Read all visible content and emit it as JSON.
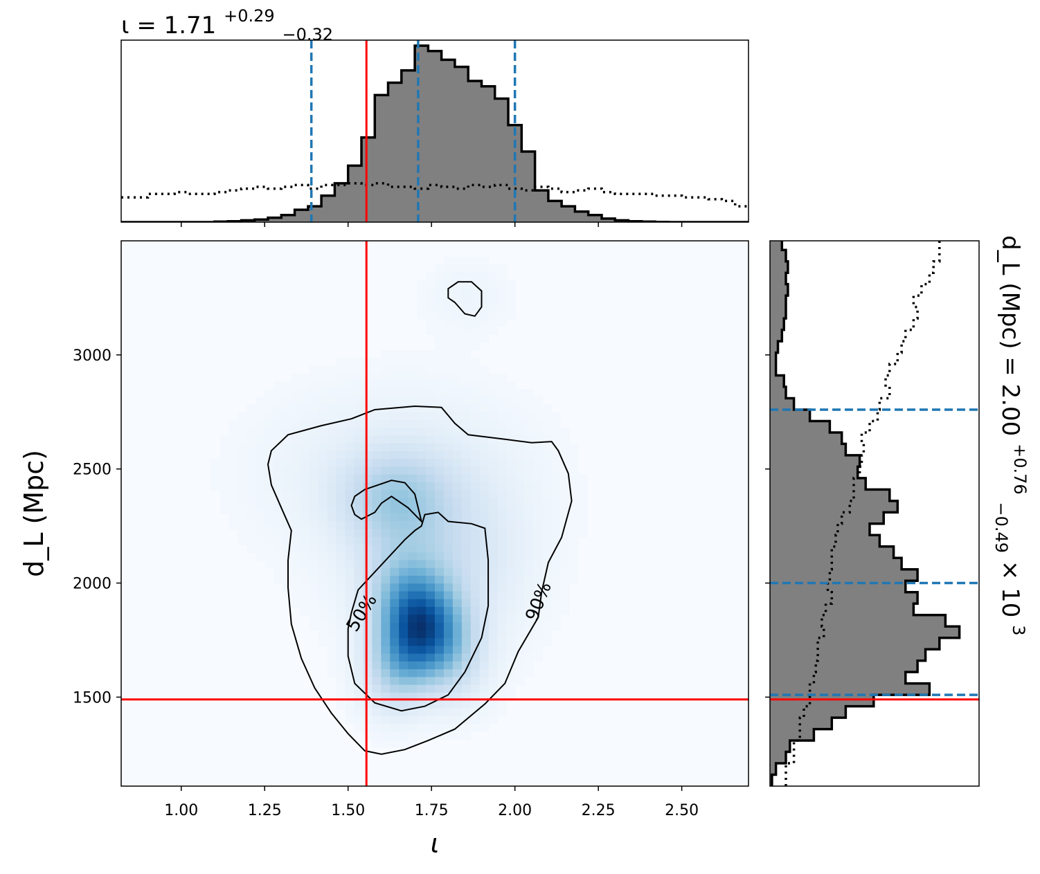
{
  "chart_data": {
    "type": "corner",
    "titles": {
      "top": {
        "text": "ι = 1.71",
        "sup": "+0.29",
        "sub": "−0.32"
      },
      "right": {
        "text": "d_L (Mpc) = 2.00",
        "sup": "+0.76",
        "sub": "−0.49",
        "suffix": " × 10",
        "exp": "3"
      }
    },
    "xlabel": "ι",
    "ylabel": "d_L (Mpc)",
    "xlim": [
      0.82,
      2.7
    ],
    "ylim": [
      1110,
      3500
    ],
    "xticks": [
      "1.00",
      "1.25",
      "1.50",
      "1.75",
      "2.00",
      "2.25",
      "2.50"
    ],
    "xtick_values": [
      1.0,
      1.25,
      1.5,
      1.75,
      2.0,
      2.25,
      2.5
    ],
    "yticks": [
      "1500",
      "2000",
      "2500",
      "3000"
    ],
    "ytick_values": [
      1500,
      2000,
      2500,
      3000
    ],
    "true_values": {
      "iota": 1.555,
      "dL": 1490
    },
    "quantiles": {
      "iota": [
        1.39,
        1.71,
        2.0
      ],
      "dL": [
        1510,
        2000,
        2760
      ]
    },
    "contour_labels": [
      "50%",
      "90%"
    ],
    "contour_levels": [
      0.5,
      0.9
    ],
    "iota_hist": {
      "edges": [
        0.82,
        0.86,
        0.9,
        0.94,
        0.98,
        1.02,
        1.06,
        1.1,
        1.14,
        1.18,
        1.22,
        1.26,
        1.3,
        1.34,
        1.38,
        1.42,
        1.46,
        1.5,
        1.54,
        1.58,
        1.62,
        1.66,
        1.7,
        1.74,
        1.78,
        1.82,
        1.86,
        1.9,
        1.94,
        1.98,
        2.02,
        2.06,
        2.1,
        2.14,
        2.18,
        2.22,
        2.26,
        2.3,
        2.34,
        2.38,
        2.42,
        2.46,
        2.5,
        2.54,
        2.58,
        2.62,
        2.66,
        2.7
      ],
      "posterior": [
        0,
        0,
        0,
        0,
        0,
        0,
        0,
        0.003,
        0.005,
        0.01,
        0.015,
        0.025,
        0.04,
        0.07,
        0.09,
        0.15,
        0.22,
        0.32,
        0.48,
        0.72,
        0.79,
        0.86,
        1.0,
        0.97,
        0.92,
        0.88,
        0.8,
        0.77,
        0.7,
        0.55,
        0.4,
        0.18,
        0.12,
        0.09,
        0.06,
        0.04,
        0.02,
        0.01,
        0.005,
        0.003,
        0.001,
        0,
        0,
        0,
        0,
        0,
        0
      ],
      "prior": [
        0.14,
        0.14,
        0.16,
        0.16,
        0.17,
        0.16,
        0.16,
        0.17,
        0.18,
        0.19,
        0.2,
        0.19,
        0.2,
        0.21,
        0.19,
        0.21,
        0.21,
        0.22,
        0.21,
        0.22,
        0.2,
        0.2,
        0.19,
        0.21,
        0.2,
        0.19,
        0.21,
        0.2,
        0.21,
        0.19,
        0.18,
        0.2,
        0.19,
        0.17,
        0.18,
        0.19,
        0.17,
        0.16,
        0.16,
        0.16,
        0.15,
        0.15,
        0.14,
        0.14,
        0.13,
        0.12,
        0.09
      ]
    },
    "dL_hist": {
      "edges": [
        1110,
        1160,
        1210,
        1260,
        1310,
        1360,
        1410,
        1460,
        1510,
        1560,
        1610,
        1660,
        1710,
        1760,
        1810,
        1860,
        1910,
        1960,
        2010,
        2060,
        2110,
        2160,
        2210,
        2260,
        2310,
        2360,
        2410,
        2460,
        2510,
        2560,
        2610,
        2660,
        2710,
        2760,
        2810,
        2860,
        2910,
        2960,
        3010,
        3060,
        3110,
        3160,
        3210,
        3260,
        3310,
        3360,
        3410,
        3460,
        3500
      ],
      "posterior": [
        0.01,
        0.03,
        0.08,
        0.1,
        0.22,
        0.31,
        0.38,
        0.52,
        0.8,
        0.68,
        0.74,
        0.78,
        0.85,
        0.95,
        0.88,
        0.72,
        0.74,
        0.68,
        0.74,
        0.66,
        0.62,
        0.55,
        0.5,
        0.57,
        0.64,
        0.6,
        0.48,
        0.44,
        0.45,
        0.38,
        0.36,
        0.3,
        0.2,
        0.12,
        0.08,
        0.07,
        0.03,
        0.03,
        0.04,
        0.06,
        0.07,
        0.08,
        0.08,
        0.09,
        0.08,
        0.09,
        0.08,
        0.06
      ],
      "prior": [
        0.08,
        0.08,
        0.12,
        0.12,
        0.15,
        0.15,
        0.17,
        0.2,
        0.2,
        0.22,
        0.23,
        0.24,
        0.24,
        0.27,
        0.26,
        0.28,
        0.31,
        0.29,
        0.3,
        0.31,
        0.31,
        0.33,
        0.34,
        0.36,
        0.4,
        0.42,
        0.42,
        0.45,
        0.46,
        0.47,
        0.46,
        0.5,
        0.54,
        0.55,
        0.6,
        0.58,
        0.6,
        0.64,
        0.66,
        0.68,
        0.72,
        0.74,
        0.72,
        0.76,
        0.8,
        0.82,
        0.85,
        0.85
      ]
    },
    "density_peak": {
      "iota": 1.73,
      "dL": 1820
    },
    "colors": {
      "posterior_fill": "#808080",
      "edge": "#000000",
      "quantile": "#1f77b4",
      "truth": "#ff0000",
      "cmap": "Blues"
    }
  }
}
